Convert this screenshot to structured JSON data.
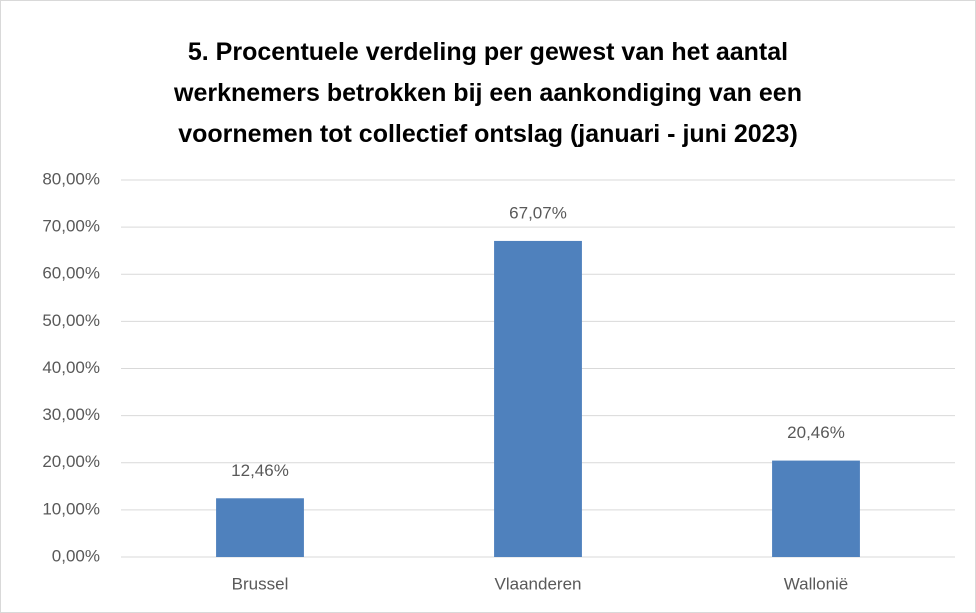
{
  "chart_data": {
    "type": "bar",
    "title": "5. Procentuele verdeling per gewest van het aantal werknemers betrokken bij een aankondiging van een voornemen tot collectief ontslag (januari - juni 2023)",
    "categories": [
      "Brussel",
      "Vlaanderen",
      "Wallonië"
    ],
    "values": [
      12.46,
      67.07,
      20.46
    ],
    "value_labels": [
      "12,46%",
      "67,07%",
      "20,46%"
    ],
    "color": "#4f81bd",
    "ylim": [
      0,
      80
    ],
    "yticks": [
      {
        "value": 0,
        "label": "0,00%"
      },
      {
        "value": 10,
        "label": "10,00%"
      },
      {
        "value": 20,
        "label": "20,00%"
      },
      {
        "value": 30,
        "label": "30,00%"
      },
      {
        "value": 40,
        "label": "40,00%"
      },
      {
        "value": 50,
        "label": "50,00%"
      },
      {
        "value": 60,
        "label": "60,00%"
      },
      {
        "value": 70,
        "label": "70,00%"
      },
      {
        "value": 80,
        "label": "80,00%"
      }
    ],
    "grid": true
  }
}
